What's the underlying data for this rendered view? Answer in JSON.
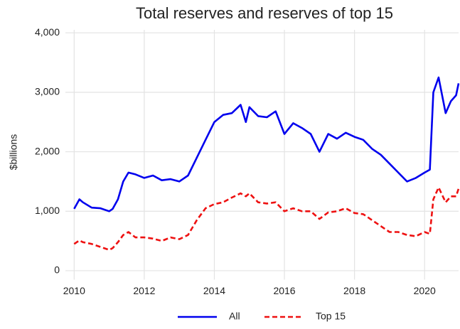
{
  "chart_data": {
    "type": "line",
    "title": "Total reserves and reserves of top 15",
    "y_label": "$billions",
    "x": [
      2010,
      2010.15,
      2010.25,
      2010.5,
      2010.75,
      2011,
      2011.1,
      2011.25,
      2011.4,
      2011.55,
      2011.75,
      2012,
      2012.25,
      2012.5,
      2012.75,
      2013,
      2013.25,
      2013.5,
      2013.75,
      2014,
      2014.25,
      2014.5,
      2014.75,
      2014.9,
      2015,
      2015.25,
      2015.5,
      2015.75,
      2016,
      2016.25,
      2016.5,
      2016.75,
      2017,
      2017.25,
      2017.5,
      2017.75,
      2018,
      2018.25,
      2018.5,
      2018.75,
      2019,
      2019.25,
      2019.5,
      2019.75,
      2020,
      2020.15,
      2020.25,
      2020.4,
      2020.6,
      2020.75,
      2020.9,
      2020.97
    ],
    "series": [
      {
        "name": "All",
        "color": "#0000ee",
        "dash": "solid",
        "values": [
          1040,
          1200,
          1150,
          1060,
          1050,
          1000,
          1040,
          1200,
          1500,
          1650,
          1620,
          1560,
          1600,
          1520,
          1540,
          1500,
          1600,
          1900,
          2200,
          2500,
          2620,
          2650,
          2790,
          2500,
          2750,
          2600,
          2580,
          2680,
          2300,
          2480,
          2400,
          2300,
          2000,
          2300,
          2220,
          2320,
          2250,
          2200,
          2050,
          1950,
          1800,
          1650,
          1500,
          1560,
          1650,
          1700,
          3000,
          3250,
          2650,
          2850,
          2950,
          3150
        ]
      },
      {
        "name": "Top 15",
        "color": "#ee1111",
        "dash": "dashed",
        "values": [
          450,
          510,
          480,
          450,
          400,
          350,
          380,
          480,
          600,
          650,
          560,
          560,
          540,
          500,
          560,
          530,
          600,
          850,
          1050,
          1120,
          1150,
          1230,
          1300,
          1250,
          1300,
          1150,
          1130,
          1150,
          1000,
          1050,
          1000,
          1000,
          870,
          980,
          1000,
          1050,
          970,
          950,
          850,
          750,
          650,
          650,
          600,
          580,
          650,
          620,
          1200,
          1400,
          1150,
          1250,
          1250,
          1380
        ]
      }
    ],
    "xlim": [
      2009.75,
      2020.97
    ],
    "xticks": [
      2010,
      2012,
      2014,
      2016,
      2018,
      2020
    ],
    "ylim": [
      -150,
      4050
    ],
    "yticks": [
      0,
      {
        "value": 1000,
        "label": "1,000"
      },
      {
        "value": 2000,
        "label": "2,000"
      },
      {
        "value": 3000,
        "label": "3,000"
      },
      {
        "value": 4000,
        "label": "4,000"
      }
    ],
    "grid": true,
    "legend": "bottom"
  }
}
